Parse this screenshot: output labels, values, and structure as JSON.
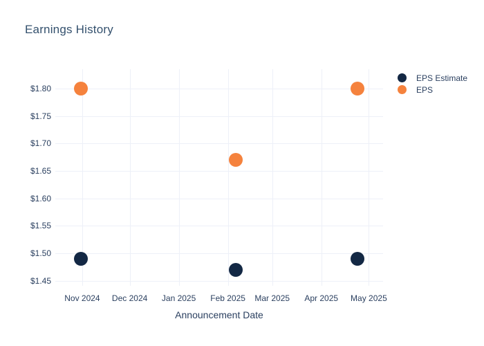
{
  "chart": {
    "title": "Earnings History",
    "xlabel": "Announcement Date",
    "colors": {
      "background": "#ffffff",
      "grid": "#edf0f8",
      "title_text": "#33506d",
      "tick_text": "#2a3f5f",
      "eps_estimate": "#132844",
      "eps": "#f5823d"
    }
  },
  "chart_data": {
    "type": "scatter",
    "title": "Earnings History",
    "xlabel": "Announcement Date",
    "ylabel": "",
    "grid": true,
    "legend_position": "outside-top-right",
    "x_axis": {
      "range": [
        "2024-10-15",
        "2025-05-10"
      ],
      "ticks": [
        {
          "date": "2024-11-01",
          "label": "Nov 2024"
        },
        {
          "date": "2024-12-01",
          "label": "Dec 2024"
        },
        {
          "date": "2025-01-01",
          "label": "Jan 2025"
        },
        {
          "date": "2025-02-01",
          "label": "Feb 2025"
        },
        {
          "date": "2025-03-01",
          "label": "Mar 2025"
        },
        {
          "date": "2025-04-01",
          "label": "Apr 2025"
        },
        {
          "date": "2025-05-01",
          "label": "May 2025"
        }
      ]
    },
    "y_axis": {
      "range": [
        1.441,
        1.835
      ],
      "ticks": [
        {
          "value": 1.8,
          "label": "$1.80"
        },
        {
          "value": 1.75,
          "label": "$1.75"
        },
        {
          "value": 1.7,
          "label": "$1.70"
        },
        {
          "value": 1.65,
          "label": "$1.65"
        },
        {
          "value": 1.6,
          "label": "$1.60"
        },
        {
          "value": 1.55,
          "label": "$1.55"
        },
        {
          "value": 1.5,
          "label": "$1.50"
        },
        {
          "value": 1.45,
          "label": "$1.45"
        }
      ]
    },
    "series": [
      {
        "name": "EPS Estimate",
        "color": "#132844",
        "marker": "circle",
        "points": [
          {
            "x": "2024-10-31",
            "y": 1.49
          },
          {
            "x": "2025-02-06",
            "y": 1.47
          },
          {
            "x": "2025-04-24",
            "y": 1.49
          }
        ]
      },
      {
        "name": "EPS",
        "color": "#f5823d",
        "marker": "circle",
        "points": [
          {
            "x": "2024-10-31",
            "y": 1.8
          },
          {
            "x": "2025-02-06",
            "y": 1.67
          },
          {
            "x": "2025-04-24",
            "y": 1.8
          }
        ]
      }
    ]
  }
}
